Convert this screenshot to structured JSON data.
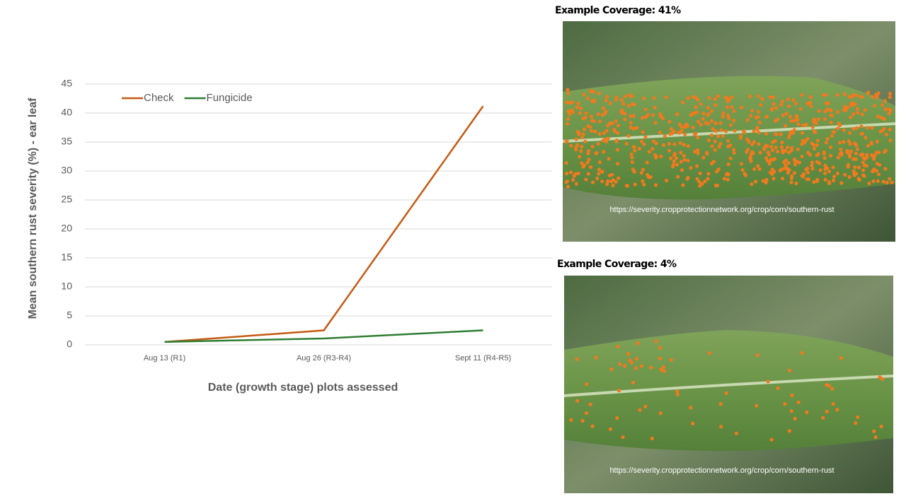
{
  "chart_data": {
    "type": "line",
    "x_label": "Date (growth stage) plots assessed",
    "y_label": "Mean southern rust severity (%) - ear leaf",
    "categories": [
      "Aug 13 (R1)",
      "Aug 26 (R3-R4)",
      "Sept 11 (R4-R5)"
    ],
    "series": [
      {
        "name": "Check",
        "color": "#c55a11",
        "values": [
          0.5,
          2.5,
          41.2
        ]
      },
      {
        "name": "Fungicide",
        "color": "#2e7d32",
        "values": [
          0.5,
          1.1,
          2.5
        ]
      }
    ],
    "ylim": [
      0,
      45
    ],
    "yticks": [
      0,
      5,
      10,
      15,
      20,
      25,
      30,
      35,
      40,
      45
    ],
    "grid": true,
    "legend": "top-left"
  },
  "images": [
    {
      "title": "Example Coverage: 41%",
      "caption": "https://severity.cropprotectionnetwork.org/crop/corn/southern-rust"
    },
    {
      "title": "Example Coverage: 4%",
      "caption": "https://severity.cropprotectionnetwork.org/crop/corn/southern-rust"
    }
  ]
}
